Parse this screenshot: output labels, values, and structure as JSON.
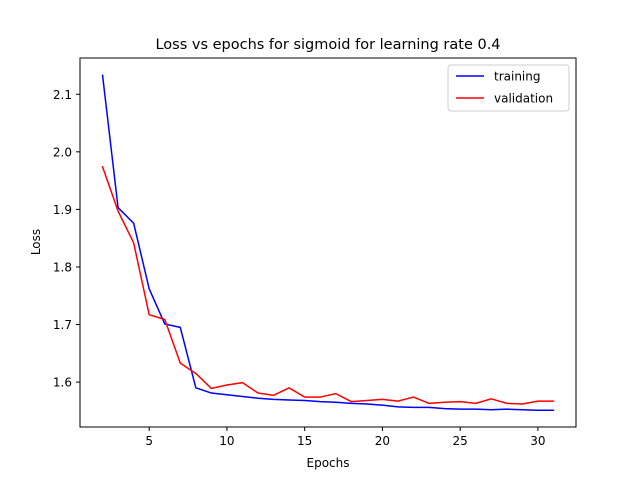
{
  "chart_data": {
    "type": "line",
    "title": "Loss vs epochs for sigmoid for learning rate 0.4",
    "xlabel": "Epochs",
    "ylabel": "Loss",
    "xlim": [
      0.55,
      32.45
    ],
    "ylim": [
      1.522,
      2.163
    ],
    "xticks": [
      5,
      10,
      15,
      20,
      25,
      30
    ],
    "yticks": [
      1.6,
      1.7,
      1.8,
      1.9,
      2.0,
      2.1
    ],
    "grid": false,
    "legend_position": "top-right",
    "x": [
      2,
      3,
      4,
      5,
      6,
      7,
      8,
      9,
      10,
      11,
      12,
      13,
      14,
      15,
      16,
      17,
      18,
      19,
      20,
      21,
      22,
      23,
      24,
      25,
      26,
      27,
      28,
      29,
      30,
      31
    ],
    "series": [
      {
        "name": "training",
        "color": "#0000ff",
        "values": [
          2.133,
          1.903,
          1.876,
          1.762,
          1.701,
          1.695,
          1.59,
          1.581,
          1.578,
          1.575,
          1.572,
          1.57,
          1.569,
          1.568,
          1.566,
          1.565,
          1.563,
          1.562,
          1.56,
          1.557,
          1.556,
          1.556,
          1.554,
          1.553,
          1.553,
          1.552,
          1.553,
          1.552,
          1.551,
          1.551
        ]
      },
      {
        "name": "validation",
        "color": "#ff0000",
        "values": [
          1.974,
          1.897,
          1.842,
          1.717,
          1.709,
          1.633,
          1.615,
          1.589,
          1.595,
          1.599,
          1.581,
          1.577,
          1.59,
          1.574,
          1.574,
          1.58,
          1.566,
          1.568,
          1.57,
          1.567,
          1.574,
          1.563,
          1.565,
          1.566,
          1.563,
          1.571,
          1.563,
          1.562,
          1.567,
          1.567
        ]
      }
    ]
  }
}
